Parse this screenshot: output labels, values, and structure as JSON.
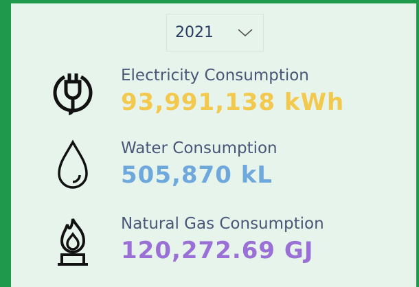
{
  "selector": {
    "value": "2021"
  },
  "metrics": [
    {
      "label": "Electricity Consumption",
      "value": "93,991,138 kWh",
      "color": "#f2c94c"
    },
    {
      "label": "Water Consumption",
      "value": "505,870 kL",
      "color": "#6fa8dc"
    },
    {
      "label": "Natural Gas Consumption",
      "value": "120,272.69 GJ",
      "color": "#9a6fd6"
    }
  ]
}
